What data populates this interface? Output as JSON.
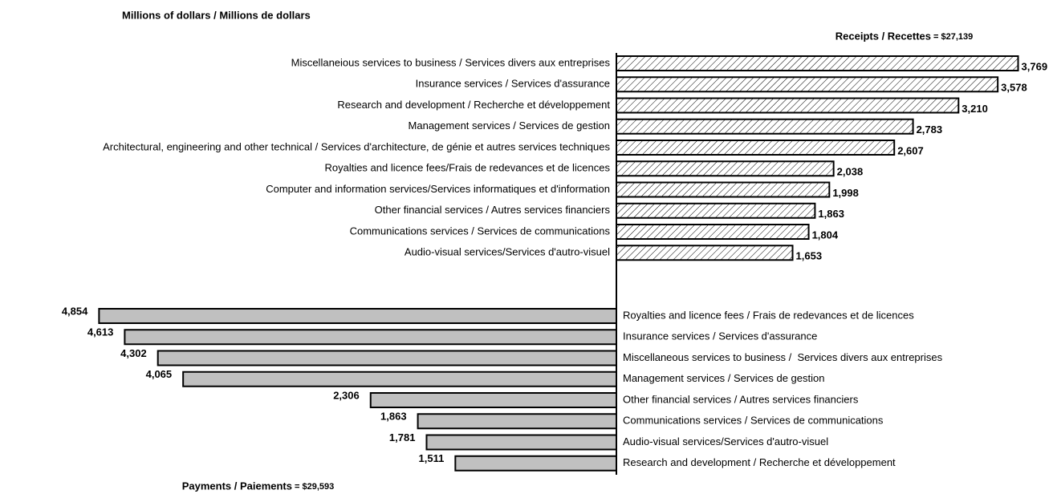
{
  "chart_data": [
    {
      "type": "bar",
      "orientation": "horizontal",
      "direction": "right",
      "pattern": "hatch",
      "color": "#ffffff",
      "title": "Millions of dollars / Millions de dollars",
      "series_label": "Receipts / Recettes",
      "total": "= $27,139",
      "categories": [
        "Miscellaneious services to business / Services divers aux entreprises",
        "Insurance services / Services d'assurance",
        "Research and development / Recherche et développement",
        "Management services / Services de gestion",
        "Architectural, engineering and other technical / Services d'architecture, de génie et autres services techniques",
        "Royalties and licence fees/Frais de redevances et de licences",
        "Computer and information services/Services informatiques et d'information",
        "Other financial services / Autres services financiers",
        "Communications services / Services de communications",
        "Audio-visual services/Services d'autro-visuel"
      ],
      "values": [
        3769,
        3578,
        3210,
        2783,
        2607,
        2038,
        1998,
        1863,
        1804,
        1653
      ],
      "value_labels": [
        "3,769",
        "3,578",
        "3,210",
        "2,783",
        "2,607",
        "2,038",
        "1,998",
        "1,863",
        "1,804",
        "1,653"
      ]
    },
    {
      "type": "bar",
      "orientation": "horizontal",
      "direction": "left",
      "pattern": "solid",
      "color": "#c0c0c0",
      "series_label": "Payments / Paiements",
      "total": "= $29,593",
      "categories": [
        "Royalties and licence fees / Frais de redevances et de licences",
        "Insurance services / Services d'assurance",
        "Miscellaneous services to business /  Services divers aux entreprises",
        "Management services / Services de gestion",
        "Other financial services / Autres services financiers",
        "Communications services / Services de communications",
        "Audio-visual services/Services d'autro-visuel",
        "Research and development / Recherche et développement"
      ],
      "values": [
        4854,
        4613,
        4302,
        4065,
        2306,
        1863,
        1781,
        1511
      ],
      "value_labels": [
        "4,854",
        "4,613",
        "4,302",
        "4,065",
        "2,306",
        "1,863",
        "1,781",
        "1,511"
      ]
    }
  ]
}
